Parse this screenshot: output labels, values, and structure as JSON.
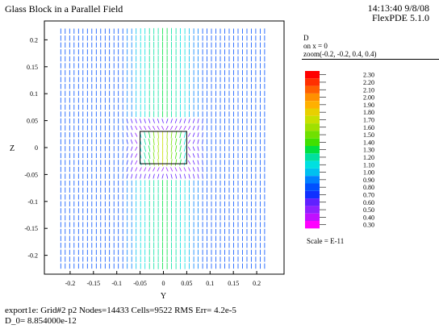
{
  "header": {
    "title": "Glass Block in a Parallel Field",
    "time": "14:13:40 9/8/08",
    "version": "FlexPDE 5.1.0"
  },
  "panel": {
    "variable": "D",
    "slice": "on x = 0",
    "zoom": "zoom(-0.2, -0.2, 0.4, 0.4)",
    "scale": "Scale = E-11"
  },
  "footer": {
    "line1": "export1e:  Grid#2  p2  Nodes=14433 Cells=9522 RMS Err= 4.2e-5",
    "line2": "D_0=  8.854000e-12"
  },
  "colors": {
    "frame": "#000000",
    "block_outline": "#000000"
  },
  "chart_data": {
    "type": "vector-field",
    "xlabel": "Y",
    "ylabel": "Z",
    "xlim": [
      -0.25,
      0.25
    ],
    "ylim": [
      -0.235,
      0.235
    ],
    "x_ticks": [
      "-0.2",
      "-0.15",
      "-0.1",
      "-0.05",
      "0",
      "0.05",
      "0.1",
      "0.15",
      "0.2"
    ],
    "x_tick_values": [
      -0.2,
      -0.15,
      -0.1,
      -0.05,
      0,
      0.05,
      0.1,
      0.15,
      0.2
    ],
    "y_ticks": [
      "0.2",
      "0.15",
      "0.1",
      "0.05",
      "0",
      "-0.05",
      "-0.1",
      "-0.15",
      "-0.2"
    ],
    "y_tick_values": [
      0.2,
      0.15,
      0.1,
      0.05,
      0,
      -0.05,
      -0.1,
      -0.15,
      -0.2
    ],
    "glass_block": {
      "y_min": -0.05,
      "y_max": 0.05,
      "z_min": -0.03,
      "z_max": 0.03
    },
    "field_range": [
      -0.22,
      0.22
    ],
    "legend": {
      "labels": [
        "2.30",
        "2.20",
        "2.10",
        "2.00",
        "1.90",
        "1.80",
        "1.70",
        "1.60",
        "1.50",
        "1.40",
        "1.30",
        "1.20",
        "1.10",
        "1.00",
        "0.90",
        "0.80",
        "0.70",
        "0.60",
        "0.50",
        "0.40",
        "0.30"
      ],
      "colors": [
        "#ff0000",
        "#ff3000",
        "#ff6000",
        "#ff9000",
        "#ffb000",
        "#e8d000",
        "#c8e000",
        "#a0e000",
        "#70e000",
        "#40e000",
        "#00e040",
        "#00e0a0",
        "#00e0e0",
        "#00c0f0",
        "#0080ff",
        "#0050ff",
        "#1030ff",
        "#6020ff",
        "#9020ff",
        "#c010ff",
        "#ff00ff"
      ]
    }
  }
}
